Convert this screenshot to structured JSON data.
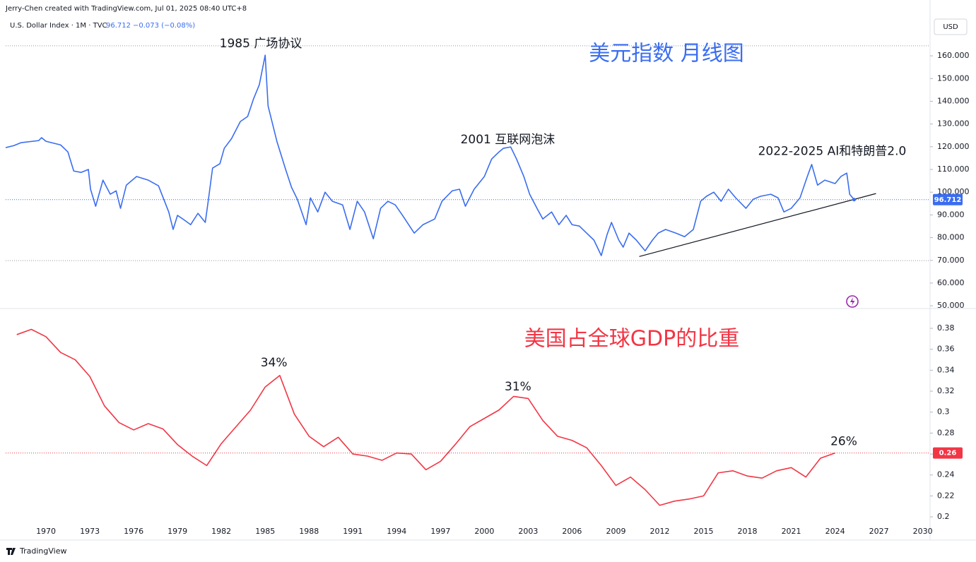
{
  "header": {
    "attribution": "Jerry-Chen created with TradingView.com, Jul 01, 2025 08:40 UTC+8",
    "symbol": "U.S. Dollar Index · 1M · TVC",
    "change": "−0.073 (−0.08%)",
    "currency": "USD",
    "brand": "TradingView"
  },
  "chart_data": [
    {
      "type": "line",
      "title": "美元指数 月线图",
      "color": "#3a6df0",
      "xlim": [
        1967.24,
        2030.5
      ],
      "ylim": [
        48.8,
        176.8
      ],
      "yticks": [
        {
          "value": 50,
          "label": "50.000"
        },
        {
          "value": 60,
          "label": "60.000"
        },
        {
          "value": 70,
          "label": "70.000"
        },
        {
          "value": 80,
          "label": "80.000"
        },
        {
          "value": 90,
          "label": "90.000"
        },
        {
          "value": 100,
          "label": "100.000"
        },
        {
          "value": 110,
          "label": "110.000"
        },
        {
          "value": 120,
          "label": "120.000"
        },
        {
          "value": 130,
          "label": "130.000"
        },
        {
          "value": 140,
          "label": "140.000"
        },
        {
          "value": 150,
          "label": "150.000"
        },
        {
          "value": 160,
          "label": "160.000"
        }
      ],
      "series": [
        {
          "name": "U.S. Dollar Index",
          "color": "#3a6df0",
          "x": [
            1967.24,
            1967.8,
            1968.3,
            1969.5,
            1969.7,
            1970,
            1971,
            1971.5,
            1971.9,
            1972.4,
            1972.9,
            1973.05,
            1973.4,
            1973.9,
            1974.4,
            1974.8,
            1975.1,
            1975.5,
            1976.2,
            1977,
            1977.7,
            1978.4,
            1978.7,
            1979,
            1979.5,
            1979.9,
            1980.4,
            1980.9,
            1981.1,
            1981.4,
            1981.9,
            1982.2,
            1982.7,
            1983.3,
            1983.8,
            1984.2,
            1984.6,
            1985,
            1985.2,
            1985.8,
            1986.4,
            1986.8,
            1987.2,
            1987.8,
            1988.1,
            1988.6,
            1989.1,
            1989.6,
            1990.3,
            1990.8,
            1991.3,
            1991.8,
            1992.4,
            1992.9,
            1993.4,
            1993.9,
            1994.4,
            1995.2,
            1995.8,
            1996.6,
            1997.1,
            1997.8,
            1998.3,
            1998.7,
            1999.3,
            2000,
            2000.5,
            2001,
            2001.3,
            2001.8,
            2002.2,
            2002.7,
            2003.1,
            2003.6,
            2004,
            2004.6,
            2005.1,
            2005.6,
            2006,
            2006.5,
            2007,
            2007.5,
            2008,
            2008.4,
            2008.7,
            2009.2,
            2009.5,
            2009.9,
            2010.4,
            2011,
            2011.5,
            2011.9,
            2012.4,
            2013.1,
            2013.7,
            2014.3,
            2014.8,
            2015.2,
            2015.7,
            2016.2,
            2016.7,
            2017.2,
            2017.9,
            2018.4,
            2018.9,
            2019.6,
            2020.1,
            2020.5,
            2021,
            2021.6,
            2022.1,
            2022.4,
            2022.8,
            2023.3,
            2024,
            2024.4,
            2024.8,
            2025,
            2025.3
          ],
          "values": [
            119.6,
            120.5,
            121.8,
            122.7,
            124,
            122.4,
            120.8,
            117.7,
            109.3,
            108.7,
            110,
            101.3,
            93.8,
            105.3,
            99.1,
            100.6,
            92.9,
            103.1,
            106.9,
            105.3,
            102.8,
            91.3,
            83.6,
            89.8,
            87.6,
            85.7,
            90.7,
            86.7,
            96,
            110.6,
            112.5,
            119.3,
            123.6,
            131.1,
            133.3,
            141,
            147.3,
            160.3,
            137.9,
            122.4,
            110,
            102.2,
            96.9,
            85.7,
            97.5,
            91.3,
            100,
            96,
            94.4,
            83.6,
            96,
            91.3,
            79.5,
            92.9,
            96,
            94.4,
            89.8,
            82,
            85.7,
            88.2,
            96,
            100.6,
            101.3,
            93.8,
            101.3,
            106.9,
            114.6,
            117.7,
            119.3,
            119.9,
            114.6,
            106.9,
            99.1,
            92.9,
            88.2,
            91.3,
            85.7,
            89.8,
            85.7,
            85.1,
            82,
            78.9,
            72.1,
            81.4,
            86.7,
            78.9,
            75.8,
            82,
            78.9,
            74.2,
            78.9,
            82,
            83.6,
            82,
            80.4,
            83.6,
            96,
            98.2,
            100,
            96,
            101.3,
            97.5,
            92.9,
            96.9,
            98.2,
            99.1,
            97.5,
            91.3,
            92.9,
            97.5,
            106.9,
            112.2,
            103.1,
            105.3,
            103.8,
            106.9,
            108.4,
            99.1,
            96.712
          ]
        }
      ],
      "last_value_label": "96.712",
      "reference_lines": [
        164.4,
        69.9
      ],
      "trendline": {
        "x": [
          2010.6,
          2026.8
        ],
        "y": [
          71.7,
          99.4
        ]
      },
      "annotations": [
        {
          "text": "1985 广场协议",
          "x": 1984.7,
          "y": 165.3
        },
        {
          "text": "2001 互联网泡沫",
          "x": 2001.6,
          "y": 123
        },
        {
          "text": "2022-2025 AI和特朗普2.0",
          "x": 2023.8,
          "y": 118
        }
      ]
    },
    {
      "type": "line",
      "title": "美国占全球GDP的比重",
      "color": "#f23645",
      "xlim": [
        1967.24,
        2030.5
      ],
      "ylim": [
        0.1778,
        0.3989
      ],
      "xticks": [
        1970,
        1973,
        1976,
        1979,
        1982,
        1985,
        1988,
        1991,
        1994,
        1997,
        2000,
        2003,
        2006,
        2009,
        2012,
        2015,
        2018,
        2021,
        2024,
        2027,
        2030
      ],
      "yticks": [
        0.2,
        0.22,
        0.24,
        0.26,
        0.28,
        0.3,
        0.32,
        0.34,
        0.36,
        0.38
      ],
      "series": [
        {
          "name": "US share of world GDP",
          "color": "#f23645",
          "x": [
            1968,
            1969,
            1970,
            1971,
            1972,
            1973,
            1974,
            1975,
            1976,
            1977,
            1978,
            1979,
            1980,
            1981,
            1982,
            1983,
            1984,
            1985,
            1986,
            1987,
            1988,
            1989,
            1990,
            1991,
            1992,
            1993,
            1994,
            1995,
            1996,
            1997,
            1998,
            1999,
            2000,
            2001,
            2002,
            2003,
            2004,
            2005,
            2006,
            2007,
            2008,
            2009,
            2010,
            2011,
            2012,
            2013,
            2014,
            2015,
            2016,
            2017,
            2018,
            2019,
            2020,
            2021,
            2022,
            2023,
            2024
          ],
          "values": [
            0.374,
            0.379,
            0.372,
            0.357,
            0.35,
            0.334,
            0.306,
            0.29,
            0.283,
            0.289,
            0.284,
            0.269,
            0.258,
            0.249,
            0.27,
            0.286,
            0.302,
            0.324,
            0.335,
            0.298,
            0.277,
            0.267,
            0.276,
            0.26,
            0.258,
            0.254,
            0.261,
            0.26,
            0.245,
            0.253,
            0.269,
            0.286,
            0.294,
            0.302,
            0.315,
            0.313,
            0.292,
            0.277,
            0.273,
            0.266,
            0.249,
            0.23,
            0.238,
            0.226,
            0.211,
            0.215,
            0.217,
            0.22,
            0.242,
            0.244,
            0.239,
            0.237,
            0.244,
            0.247,
            0.238,
            0.256,
            0.261
          ]
        }
      ],
      "last_value_label": "0.26",
      "annotations": [
        {
          "text": "34%",
          "x": 1985.6,
          "y": 0.347
        },
        {
          "text": "31%",
          "x": 2002.3,
          "y": 0.324
        },
        {
          "text": "26%",
          "x": 2024.6,
          "y": 0.272
        }
      ]
    }
  ]
}
